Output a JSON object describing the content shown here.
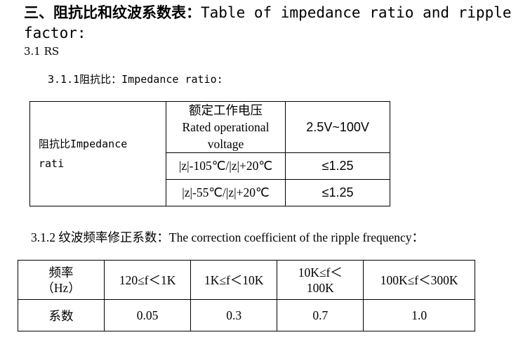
{
  "title": {
    "zh": "三、阻抗比和纹波系数表：",
    "en_line1": "Table of impedance ratio and ripple",
    "en_line2": "factor:"
  },
  "section": "3.1 RS",
  "impedance": {
    "heading": "3.1.1阻抗比：Impedance ratio:",
    "label_line1": "阻抗比Impedance",
    "label_line2": "rati",
    "voltage_header_line1": "额定工作电压",
    "voltage_header_line2": "Rated operational",
    "voltage_header_line3": "voltage",
    "voltage_value": "2.5V~100V",
    "rows": [
      {
        "condition": "|z|-105℃/|z|+20℃",
        "value": "≤1.25"
      },
      {
        "condition": "|z|-55℃/|z|+20℃",
        "value": "≤1.25"
      }
    ]
  },
  "ripple": {
    "heading": "3.1.2 纹波频率修正系数：The correction coefficient of the ripple frequency：",
    "freq_label_line1": "频率",
    "freq_label_line2": "（Hz）",
    "coef_label": "系数",
    "columns": [
      {
        "freq_line1": "120≤f＜1K",
        "freq_line2": "",
        "coef": "0.05"
      },
      {
        "freq_line1": "1K≤f＜10K",
        "freq_line2": "",
        "coef": "0.3"
      },
      {
        "freq_line1": "10K≤f＜",
        "freq_line2": "100K",
        "coef": "0.7"
      },
      {
        "freq_line1": "100K≤f＜300K",
        "freq_line2": "",
        "coef": "1.0"
      }
    ]
  }
}
